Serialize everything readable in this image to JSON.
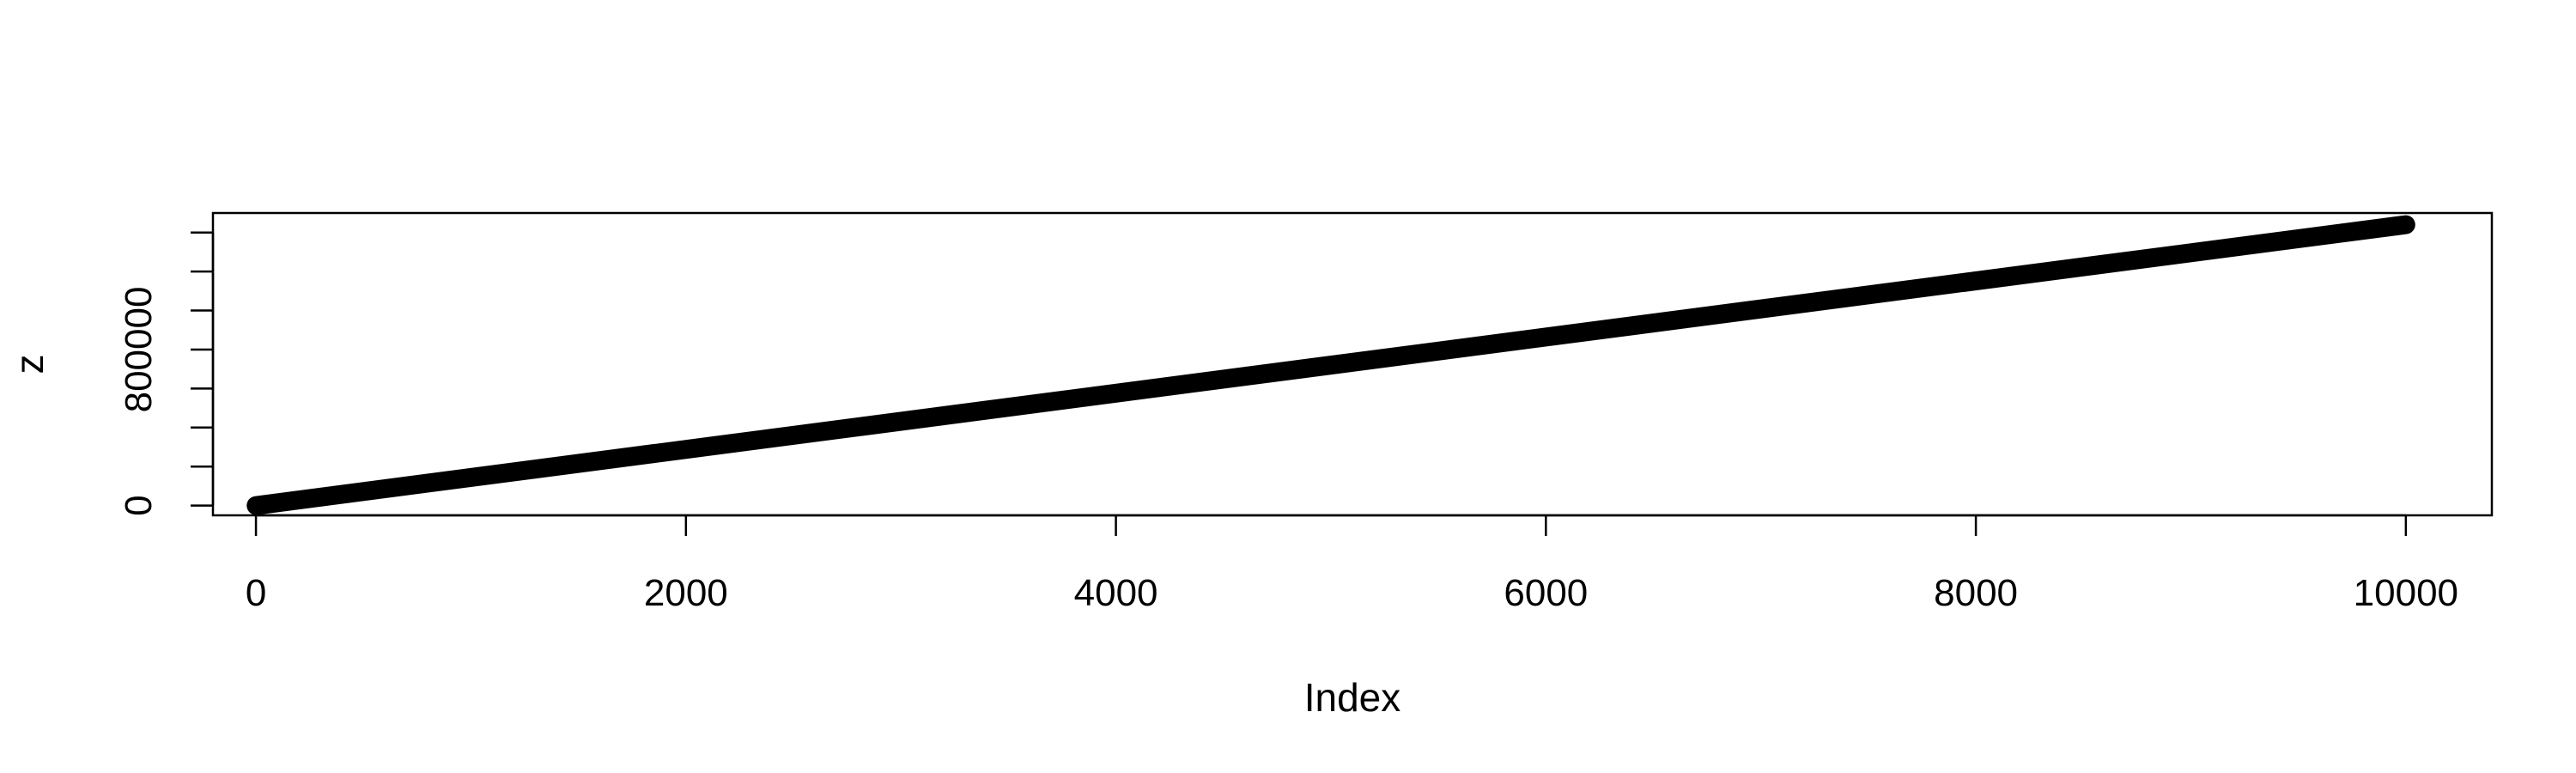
{
  "chart_data": {
    "type": "line",
    "title": "",
    "xlabel": "Index",
    "ylabel": "z",
    "xlim": [
      -200,
      10400
    ],
    "ylim": [
      -50000,
      1500000
    ],
    "x_ticks": [
      0,
      2000,
      4000,
      6000,
      8000,
      10000
    ],
    "x_tick_labels": [
      "0",
      "2000",
      "4000",
      "6000",
      "8000",
      "10000"
    ],
    "y_ticks": [
      0,
      200000,
      400000,
      600000,
      800000,
      1000000,
      1200000,
      1400000
    ],
    "y_tick_labels": [
      "0",
      "",
      "",
      "",
      "800000",
      "",
      "",
      ""
    ],
    "grid": false,
    "legend": "none",
    "colors": {
      "line": "#000000",
      "axes": "#000000",
      "background": "#ffffff"
    },
    "series": [
      {
        "x": [
          1,
          10000
        ],
        "y": [
          0,
          1440000
        ]
      }
    ]
  }
}
